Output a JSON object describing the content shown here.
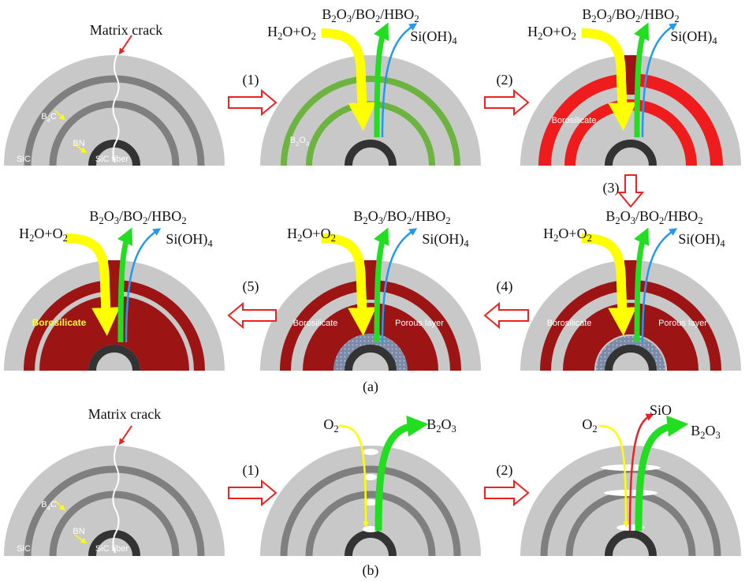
{
  "panel_a": {
    "caption": "(a)",
    "steps": [
      "(1)",
      "(2)",
      "(3)",
      "(4)",
      "(5)"
    ],
    "stage1": {
      "crack": "Matrix crack",
      "b4c": "B4C",
      "bn": "BN",
      "sic": "SiC",
      "fiber": "SiC fiber"
    },
    "stage2": {
      "products": "B2O3/BO2/HBO2",
      "oxidant": "H2O+O2",
      "volatile": "Si(OH)4",
      "layer": "B2O3"
    },
    "stage3": {
      "products": "B2O3/BO2/HBO2",
      "oxidant": "H2O+O2",
      "volatile": "Si(OH)4",
      "layer": "Borosilicate"
    },
    "stage4": {
      "products": "B2O3/BO2/HBO2",
      "oxidant": "H2O+O2",
      "volatile": "Si(OH)4",
      "layer": "Borosilicate",
      "porous": "Porous layer"
    },
    "stage5": {
      "products": "B2O3/BO2/HBO2",
      "oxidant": "H2O+O2",
      "volatile": "Si(OH)4",
      "layer": "Borosilicate",
      "porous": "Porous layer"
    },
    "stage6": {
      "products": "B2O3/BO2/HBO2",
      "oxidant": "H2O+O2",
      "volatile": "Si(OH)4",
      "layer": "Borosilicate"
    }
  },
  "panel_b": {
    "caption": "(b)",
    "steps": [
      "(1)",
      "(2)"
    ],
    "stage1": {
      "crack": "Matrix crack",
      "b4c": "B4C",
      "bn": "BN",
      "sic": "SiC",
      "fiber": "SiC fiber"
    },
    "stage2": {
      "oxidant": "O2",
      "product": "B2O3"
    },
    "stage3": {
      "oxidant": "O2",
      "volatile": "SiO",
      "product": "B2O3"
    }
  }
}
